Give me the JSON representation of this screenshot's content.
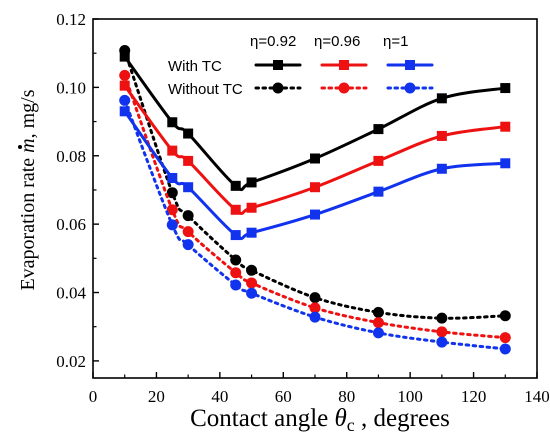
{
  "chart_data": {
    "type": "line",
    "xlabel": "Contact angle θc , degrees",
    "xlabel_parts": {
      "text": "Contact angle ",
      "symbol": "θ",
      "subscript": "c",
      "suffix": " , degrees"
    },
    "ylabel": "Evaporation rate ṁ, mg/s",
    "ylabel_parts": {
      "text": "Evaporation rate ",
      "symbol": "m",
      "suffix": ", mg/s"
    },
    "xlim": [
      0,
      140
    ],
    "ylim": [
      0.015,
      0.12
    ],
    "xticks": [
      "0",
      "20",
      "40",
      "60",
      "80",
      "100",
      "120",
      "140"
    ],
    "xtick_values": [
      0,
      20,
      40,
      60,
      80,
      100,
      120,
      140
    ],
    "yticks": [
      "0.02",
      "0.04",
      "0.06",
      "0.08",
      "0.10",
      "0.12"
    ],
    "ytick_values": [
      0.02,
      0.04,
      0.06,
      0.08,
      0.1,
      0.12
    ],
    "grid": false,
    "legend": {
      "placement": "top-center",
      "columns": [
        "η=0.92",
        "η=0.96",
        "η=1"
      ],
      "rows": [
        "With TC",
        "Without TC"
      ]
    },
    "series": [
      {
        "name": "With TC η=0.92",
        "color": "#000000",
        "marker": "square",
        "style": "solid",
        "x": [
          10,
          25,
          30,
          45,
          50,
          70,
          90,
          110,
          130
        ],
        "y": [
          0.109,
          0.0898,
          0.0865,
          0.0712,
          0.0722,
          0.0792,
          0.0878,
          0.0968,
          0.0998
        ]
      },
      {
        "name": "With TC η=0.96",
        "color": "#ee1111",
        "marker": "square",
        "style": "solid",
        "x": [
          10,
          25,
          30,
          45,
          50,
          70,
          90,
          110,
          130
        ],
        "y": [
          0.1005,
          0.0815,
          0.0785,
          0.0642,
          0.0648,
          0.0708,
          0.0785,
          0.0858,
          0.0885
        ]
      },
      {
        "name": "With TC η=1",
        "color": "#1133ee",
        "marker": "square",
        "style": "solid",
        "x": [
          10,
          25,
          30,
          45,
          50,
          70,
          90,
          110,
          130
        ],
        "y": [
          0.093,
          0.0735,
          0.0708,
          0.0568,
          0.0575,
          0.0628,
          0.0695,
          0.0762,
          0.0778
        ]
      },
      {
        "name": "Without TC η=0.92",
        "color": "#000000",
        "marker": "circle",
        "style": "dotted",
        "x": [
          10,
          25,
          30,
          45,
          50,
          70,
          90,
          110,
          130
        ],
        "y": [
          0.1108,
          0.0692,
          0.0625,
          0.0495,
          0.0465,
          0.0385,
          0.0342,
          0.0325,
          0.0332
        ]
      },
      {
        "name": "Without TC η=0.96",
        "color": "#ee1111",
        "marker": "circle",
        "style": "dotted",
        "x": [
          10,
          25,
          30,
          45,
          50,
          70,
          90,
          110,
          130
        ],
        "y": [
          0.1035,
          0.0642,
          0.0578,
          0.0458,
          0.0428,
          0.0355,
          0.0312,
          0.0285,
          0.0268
        ]
      },
      {
        "name": "Without TC η=1",
        "color": "#1133ee",
        "marker": "circle",
        "style": "dotted",
        "x": [
          10,
          25,
          30,
          45,
          50,
          70,
          90,
          110,
          130
        ],
        "y": [
          0.0962,
          0.0598,
          0.054,
          0.0422,
          0.0398,
          0.0328,
          0.0282,
          0.0255,
          0.0235
        ]
      }
    ]
  }
}
